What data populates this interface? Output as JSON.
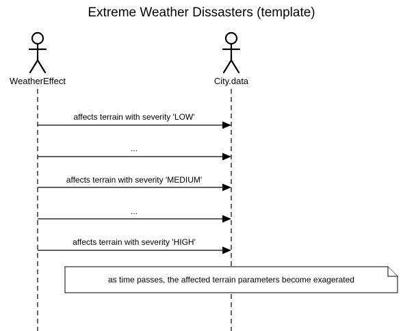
{
  "diagram": {
    "title": "Extreme Weather Dissasters (template)",
    "actors": [
      {
        "name": "WeatherEffect"
      },
      {
        "name": "City.data"
      }
    ],
    "messages": [
      {
        "from": 0,
        "to": 1,
        "label": "affects terrain with severity 'LOW'"
      },
      {
        "from": 0,
        "to": 1,
        "label": "..."
      },
      {
        "from": 0,
        "to": 1,
        "label": "affects terrain with severity 'MEDIUM'"
      },
      {
        "from": 0,
        "to": 1,
        "label": "..."
      },
      {
        "from": 0,
        "to": 1,
        "label": "affects terrain with severity 'HIGH'"
      }
    ],
    "note": {
      "text": "as time passes, the affected terrain parameters become exagerated"
    }
  }
}
